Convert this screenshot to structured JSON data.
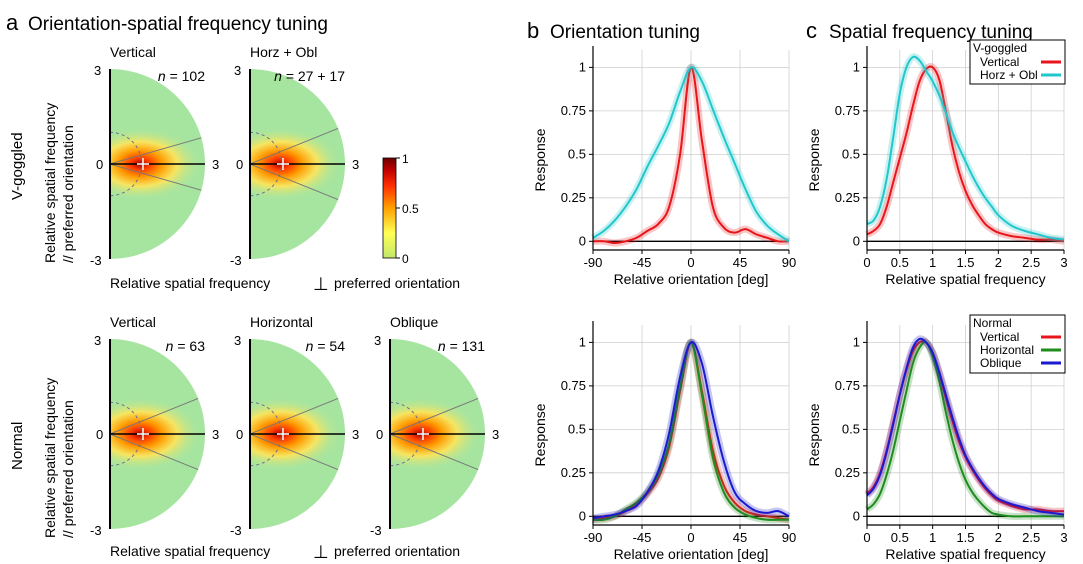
{
  "figure": {
    "panel_a": {
      "letter": "a",
      "title": "Orientation-spatial frequency tuning",
      "row_labels": [
        "V-goggled",
        "Normal"
      ],
      "y_axis_label_line1": "Relative spatial frequency",
      "y_axis_label_line2": "// preferred orientation",
      "x_axis_label": "Relative spatial frequency",
      "x_axis_suffix": "preferred orientation",
      "perp_symbol": "⊥",
      "tick_top": "3",
      "tick_mid": "0",
      "tick_bottom": "-3",
      "tick_right": "3",
      "n_prefix": "n",
      "rows": [
        {
          "polars": [
            {
              "title": "Vertical",
              "n": "= 102",
              "sector_deg": 16
            },
            {
              "title": "Horz + Obl",
              "n": "= 27 + 17",
              "sector_deg": 22
            }
          ]
        },
        {
          "polars": [
            {
              "title": "Vertical",
              "n": "= 63",
              "sector_deg": 22
            },
            {
              "title": "Horizontal",
              "n": "= 54",
              "sector_deg": 22
            },
            {
              "title": "Oblique",
              "n": "= 131",
              "sector_deg": 22
            }
          ]
        }
      ],
      "colorbar": {
        "max_label": "1",
        "mid_label": "0.5",
        "min_label": "0",
        "colors": [
          "#c0c040",
          "#ffff60",
          "#ffa000",
          "#ff4000",
          "#c00000",
          "#700000"
        ]
      }
    },
    "panel_b": {
      "letter": "b",
      "title": "Orientation tuning"
    },
    "panel_c": {
      "letter": "c",
      "title": "Spatial frequency tuning"
    }
  },
  "chart_data": [
    {
      "type": "line",
      "id": "b-top",
      "xlabel": "Relative orientation [deg]",
      "ylabel": "Response",
      "xlim": [
        -90,
        90
      ],
      "ylim": [
        -0.05,
        1.1
      ],
      "xticks": [
        "-90",
        "-45",
        "0",
        "45",
        "90"
      ],
      "yticks": [
        "0",
        "0.25",
        "0.5",
        "0.75",
        "1"
      ],
      "grid": true,
      "x": [
        -90,
        -80,
        -70,
        -60,
        -50,
        -40,
        -30,
        -20,
        -10,
        0,
        10,
        20,
        30,
        40,
        50,
        60,
        70,
        80,
        90
      ],
      "series": [
        {
          "name": "Vertical",
          "color": "#e8161b",
          "values": [
            0.0,
            0.0,
            -0.01,
            0.0,
            0.02,
            0.06,
            0.1,
            0.2,
            0.5,
            1.0,
            0.58,
            0.2,
            0.08,
            0.05,
            0.07,
            0.04,
            0.02,
            0.0,
            0.0
          ]
        },
        {
          "name": "Horz + Obl",
          "color": "#22c7cc",
          "values": [
            0.02,
            0.06,
            0.12,
            0.2,
            0.3,
            0.43,
            0.55,
            0.68,
            0.86,
            1.0,
            0.92,
            0.76,
            0.6,
            0.45,
            0.3,
            0.17,
            0.09,
            0.04,
            0.0
          ]
        }
      ]
    },
    {
      "type": "line",
      "id": "b-bottom",
      "xlabel": "Relative orientation [deg]",
      "ylabel": "Response",
      "xlim": [
        -90,
        90
      ],
      "ylim": [
        -0.05,
        1.1
      ],
      "xticks": [
        "-90",
        "-45",
        "0",
        "45",
        "90"
      ],
      "yticks": [
        "0",
        "0.25",
        "0.5",
        "0.75",
        "1"
      ],
      "grid": true,
      "x": [
        -90,
        -80,
        -70,
        -60,
        -50,
        -40,
        -30,
        -20,
        -10,
        0,
        10,
        20,
        30,
        40,
        50,
        60,
        70,
        80,
        90
      ],
      "series": [
        {
          "name": "Vertical",
          "color": "#e8161b",
          "values": [
            -0.02,
            -0.01,
            0.0,
            0.03,
            0.07,
            0.13,
            0.22,
            0.4,
            0.72,
            1.0,
            0.72,
            0.38,
            0.18,
            0.08,
            0.03,
            0.01,
            0.0,
            -0.01,
            -0.02
          ]
        },
        {
          "name": "Horizontal",
          "color": "#1e8c1e",
          "values": [
            -0.02,
            -0.02,
            0.0,
            0.04,
            0.08,
            0.14,
            0.24,
            0.42,
            0.74,
            1.0,
            0.7,
            0.34,
            0.14,
            0.05,
            0.01,
            -0.01,
            -0.02,
            -0.02,
            -0.02
          ]
        },
        {
          "name": "Oblique",
          "color": "#1a1ad0",
          "values": [
            -0.01,
            0.0,
            0.01,
            0.03,
            0.06,
            0.14,
            0.26,
            0.48,
            0.8,
            1.0,
            0.88,
            0.58,
            0.32,
            0.14,
            0.07,
            0.03,
            0.02,
            0.03,
            0.0
          ]
        }
      ]
    },
    {
      "type": "line",
      "id": "c-top",
      "xlabel": "Relative spatial frequency",
      "ylabel": "Response",
      "xlim": [
        0,
        3
      ],
      "ylim": [
        -0.05,
        1.1
      ],
      "xticks": [
        "0",
        "0.5",
        "1",
        "1.5",
        "2",
        "2.5",
        "3"
      ],
      "yticks": [
        "0",
        "0.25",
        "0.5",
        "0.75",
        "1"
      ],
      "grid": true,
      "legend": {
        "title": "V-goggled",
        "position": "top-right"
      },
      "x": [
        0,
        0.1,
        0.2,
        0.3,
        0.4,
        0.5,
        0.6,
        0.7,
        0.8,
        0.9,
        1.0,
        1.1,
        1.2,
        1.3,
        1.4,
        1.5,
        1.6,
        1.7,
        1.8,
        1.9,
        2.0,
        2.2,
        2.4,
        2.6,
        2.8,
        3.0
      ],
      "series": [
        {
          "name": "Vertical",
          "color": "#e8161b",
          "values": [
            0.04,
            0.06,
            0.1,
            0.2,
            0.34,
            0.48,
            0.62,
            0.78,
            0.92,
            0.99,
            1.0,
            0.93,
            0.75,
            0.55,
            0.4,
            0.29,
            0.21,
            0.15,
            0.1,
            0.07,
            0.05,
            0.03,
            0.02,
            0.01,
            0.01,
            0.0
          ]
        },
        {
          "name": "Horz + Obl",
          "color": "#22c7cc",
          "values": [
            0.1,
            0.12,
            0.2,
            0.36,
            0.6,
            0.85,
            1.0,
            1.06,
            1.04,
            0.98,
            0.92,
            0.84,
            0.74,
            0.63,
            0.54,
            0.46,
            0.38,
            0.31,
            0.25,
            0.2,
            0.15,
            0.09,
            0.06,
            0.04,
            0.02,
            0.01
          ]
        }
      ]
    },
    {
      "type": "line",
      "id": "c-bottom",
      "xlabel": "Relative spatial frequency",
      "ylabel": "Response",
      "xlim": [
        0,
        3
      ],
      "ylim": [
        -0.05,
        1.1
      ],
      "xticks": [
        "0",
        "0.5",
        "1",
        "1.5",
        "2",
        "2.5",
        "3"
      ],
      "yticks": [
        "0",
        "0.25",
        "0.5",
        "0.75",
        "1"
      ],
      "grid": true,
      "legend": {
        "title": "Normal",
        "position": "top-right"
      },
      "x": [
        0,
        0.1,
        0.2,
        0.3,
        0.4,
        0.5,
        0.6,
        0.7,
        0.8,
        0.9,
        1.0,
        1.1,
        1.2,
        1.3,
        1.4,
        1.5,
        1.6,
        1.7,
        1.8,
        1.9,
        2.0,
        2.2,
        2.4,
        2.6,
        2.8,
        3.0
      ],
      "series": [
        {
          "name": "Vertical",
          "color": "#e8161b",
          "values": [
            0.13,
            0.17,
            0.25,
            0.38,
            0.54,
            0.7,
            0.84,
            0.95,
            1.0,
            1.0,
            0.94,
            0.82,
            0.68,
            0.55,
            0.43,
            0.34,
            0.27,
            0.21,
            0.16,
            0.12,
            0.09,
            0.06,
            0.04,
            0.04,
            0.03,
            0.03
          ]
        },
        {
          "name": "Horizontal",
          "color": "#1e8c1e",
          "values": [
            0.04,
            0.07,
            0.13,
            0.24,
            0.38,
            0.55,
            0.72,
            0.88,
            0.97,
            1.0,
            0.92,
            0.78,
            0.6,
            0.44,
            0.31,
            0.21,
            0.14,
            0.09,
            0.05,
            0.02,
            0.01,
            0.0,
            0.0,
            0.0,
            0.0,
            0.0
          ]
        },
        {
          "name": "Oblique",
          "color": "#1a1ad0",
          "values": [
            0.12,
            0.16,
            0.24,
            0.37,
            0.53,
            0.7,
            0.85,
            0.97,
            1.02,
            1.0,
            0.94,
            0.83,
            0.7,
            0.57,
            0.45,
            0.35,
            0.28,
            0.22,
            0.17,
            0.13,
            0.1,
            0.07,
            0.05,
            0.03,
            0.02,
            0.01
          ]
        }
      ]
    }
  ]
}
